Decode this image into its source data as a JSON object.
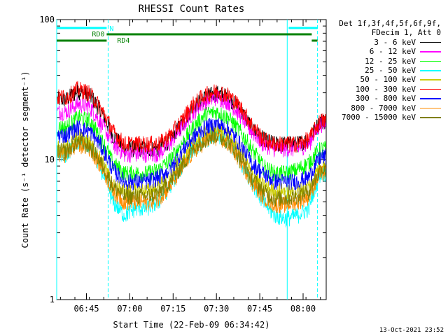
{
  "title": "RHESSI Count Rates",
  "xlabel": "Start Time (22-Feb-09 06:34:42)",
  "ylabel": "Count Rate (s⁻¹ detector segment⁻¹)",
  "footer": "13-Oct-2021 23:52",
  "legend": {
    "header_line1": "Det 1f,3f,4f,5f,6f,9f,",
    "header_line2": "FDecim 1, Att 0"
  },
  "attenuator_flags": [
    {
      "label": "N",
      "color": "#00ffff",
      "segments": [
        [
          "06:34:42",
          "06:52:00"
        ],
        [
          "07:55:00",
          "08:05:00"
        ]
      ]
    },
    {
      "label": "RD0",
      "color": "#008000",
      "segments": [
        [
          "06:52:00",
          "08:03:00"
        ]
      ]
    },
    {
      "label": "RD4",
      "color": "#008000",
      "segments": [
        [
          "06:34:42",
          "06:52:00"
        ],
        [
          "08:03:00",
          "08:05:00"
        ]
      ]
    }
  ],
  "vertical_markers": [
    {
      "time": "06:34:42",
      "style": "solid",
      "color": "#00ffff"
    },
    {
      "time": "06:52:30",
      "style": "dashed",
      "color": "#00ffff"
    },
    {
      "time": "07:54:30",
      "style": "solid",
      "color": "#00ffff"
    },
    {
      "time": "08:05:00",
      "style": "dashed",
      "color": "#00ffff"
    }
  ],
  "chart_data": {
    "type": "line",
    "title": "RHESSI Count Rates",
    "xlabel": "Start Time (22-Feb-09 06:34:42)",
    "ylabel": "Count Rate (s⁻¹ detector segment⁻¹)",
    "yscale": "log",
    "ylim": [
      1,
      100
    ],
    "xlim": [
      "06:34:42",
      "08:08:00"
    ],
    "x_ticks": [
      "06:45",
      "07:00",
      "07:15",
      "07:30",
      "07:45",
      "08:00"
    ],
    "y_ticks": [
      "1",
      "10",
      "100"
    ],
    "x": [
      "06:38",
      "06:42",
      "06:46",
      "06:50",
      "06:54",
      "06:58",
      "07:02",
      "07:06",
      "07:10",
      "07:14",
      "07:18",
      "07:22",
      "07:26",
      "07:30",
      "07:34",
      "07:38",
      "07:42",
      "07:46",
      "07:50",
      "07:54",
      "07:58",
      "08:02",
      "08:06"
    ],
    "series": [
      {
        "name": "3 - 6 keV",
        "color": "#000000",
        "values": [
          27,
          31,
          29,
          22,
          15,
          12,
          12,
          12,
          12,
          14,
          18,
          24,
          28,
          30,
          28,
          23,
          17,
          14,
          13,
          13,
          13,
          14,
          19
        ]
      },
      {
        "name": "6 - 12 keV",
        "color": "#ff00ff",
        "values": [
          22,
          25,
          24,
          18,
          13,
          11,
          11,
          11,
          11,
          13,
          17,
          22,
          26,
          28,
          26,
          21,
          16,
          13,
          12,
          12,
          12,
          13,
          18
        ]
      },
      {
        "name": "12 - 25 keV",
        "color": "#00ff00",
        "values": [
          17,
          20,
          19,
          14,
          9.5,
          8,
          8,
          8,
          8.5,
          10,
          13,
          17,
          21,
          22,
          20,
          16,
          12,
          9,
          8,
          8,
          8.5,
          9.5,
          12
        ]
      },
      {
        "name": "25 - 50 keV",
        "color": "#00ffff",
        "values": [
          11,
          13.5,
          12.5,
          8.5,
          5,
          4,
          4.5,
          4.5,
          5,
          6.5,
          9,
          12,
          14,
          15,
          13.5,
          10,
          7,
          5,
          4,
          3.8,
          4,
          4.5,
          8
        ]
      },
      {
        "name": "50 - 100 keV",
        "color": "#cccc00",
        "values": [
          12,
          14.5,
          13.5,
          10,
          6.5,
          6,
          6,
          6,
          6.5,
          7.5,
          10,
          13,
          15.5,
          16.5,
          15,
          11.5,
          8,
          6.5,
          6,
          6,
          6,
          6.5,
          9
        ]
      },
      {
        "name": "100 - 300 keV",
        "color": "#ff0000",
        "values": [
          28,
          32,
          30,
          23,
          16,
          13,
          13,
          13,
          13,
          15,
          19,
          25,
          29,
          31,
          29,
          24,
          18,
          14,
          13,
          13,
          13,
          14,
          19
        ]
      },
      {
        "name": "300 - 800 keV",
        "color": "#0000ff",
        "values": [
          15,
          17,
          16,
          12.5,
          8.5,
          7,
          7,
          7,
          7.5,
          8.5,
          11.5,
          14.5,
          17,
          18,
          16.5,
          13,
          9.5,
          8,
          7,
          7,
          7,
          7.5,
          10.5
        ]
      },
      {
        "name": "800 - 7000 keV",
        "color": "#ff8c00",
        "values": [
          11,
          13,
          12,
          9,
          6,
          5,
          5,
          5,
          5.3,
          6.5,
          8.5,
          11.5,
          13.5,
          14.5,
          13,
          10,
          7,
          5.5,
          4.8,
          4.8,
          5,
          5.5,
          8
        ]
      },
      {
        "name": "7000 - 15000 keV",
        "color": "#808000",
        "values": [
          11.5,
          13.5,
          12.5,
          9.5,
          6.5,
          5.5,
          5.5,
          5.5,
          5.8,
          7,
          9,
          12,
          14,
          15,
          13.5,
          10.5,
          7.5,
          6,
          5.3,
          5.3,
          5.5,
          6,
          8.5
        ]
      }
    ]
  }
}
